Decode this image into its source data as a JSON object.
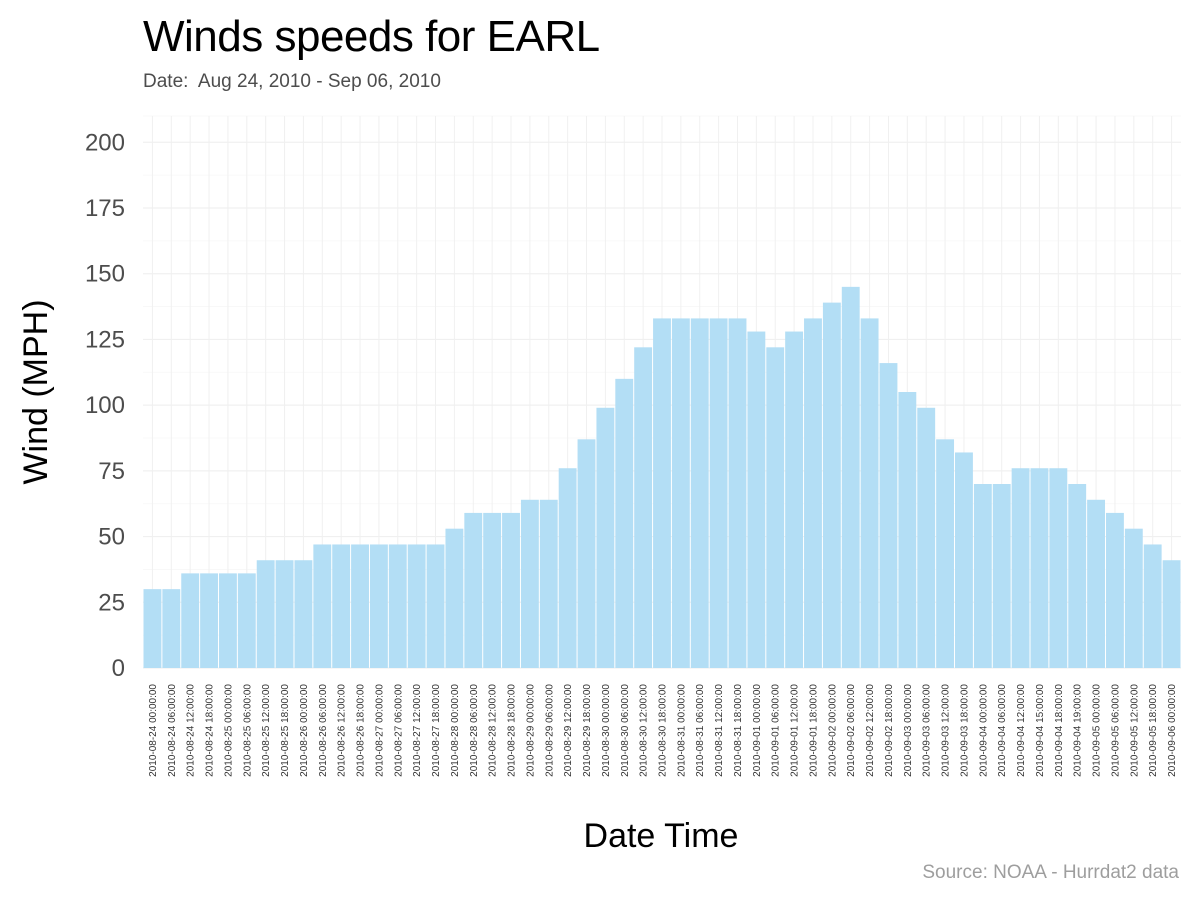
{
  "header": {
    "title": "Winds speeds for EARL",
    "subtitle": "Date:  Aug 24, 2010 - Sep 06, 2010"
  },
  "footer": {
    "source": "Source: NOAA - Hurrdat2 data"
  },
  "colors": {
    "bar_fill": "#b3def5",
    "grid": "#f0f0f0",
    "text_dark": "#4d4d4d"
  },
  "chart_data": {
    "type": "bar",
    "title": "Winds speeds for EARL",
    "xlabel": "Date Time",
    "ylabel": "Wind (MPH)",
    "ylim": [
      0,
      210
    ],
    "yticks": [
      0,
      25,
      50,
      75,
      100,
      125,
      150,
      175,
      200
    ],
    "grid": true,
    "legend": "none",
    "categories": [
      "2010-08-24 00:00:00",
      "2010-08-24 06:00:00",
      "2010-08-24 12:00:00",
      "2010-08-24 18:00:00",
      "2010-08-25 00:00:00",
      "2010-08-25 06:00:00",
      "2010-08-25 12:00:00",
      "2010-08-25 18:00:00",
      "2010-08-26 00:00:00",
      "2010-08-26 06:00:00",
      "2010-08-26 12:00:00",
      "2010-08-26 18:00:00",
      "2010-08-27 00:00:00",
      "2010-08-27 06:00:00",
      "2010-08-27 12:00:00",
      "2010-08-27 18:00:00",
      "2010-08-28 00:00:00",
      "2010-08-28 06:00:00",
      "2010-08-28 12:00:00",
      "2010-08-28 18:00:00",
      "2010-08-29 00:00:00",
      "2010-08-29 06:00:00",
      "2010-08-29 12:00:00",
      "2010-08-29 18:00:00",
      "2010-08-30 00:00:00",
      "2010-08-30 06:00:00",
      "2010-08-30 12:00:00",
      "2010-08-30 18:00:00",
      "2010-08-31 00:00:00",
      "2010-08-31 06:00:00",
      "2010-08-31 12:00:00",
      "2010-08-31 18:00:00",
      "2010-09-01 00:00:00",
      "2010-09-01 06:00:00",
      "2010-09-01 12:00:00",
      "2010-09-01 18:00:00",
      "2010-09-02 00:00:00",
      "2010-09-02 06:00:00",
      "2010-09-02 12:00:00",
      "2010-09-02 18:00:00",
      "2010-09-03 00:00:00",
      "2010-09-03 06:00:00",
      "2010-09-03 12:00:00",
      "2010-09-03 18:00:00",
      "2010-09-04 00:00:00",
      "2010-09-04 06:00:00",
      "2010-09-04 12:00:00",
      "2010-09-04 15:00:00",
      "2010-09-04 18:00:00",
      "2010-09-04 19:00:00",
      "2010-09-05 00:00:00",
      "2010-09-05 06:00:00",
      "2010-09-05 12:00:00",
      "2010-09-05 18:00:00",
      "2010-09-06 00:00:00"
    ],
    "values": [
      30,
      30,
      36,
      36,
      36,
      36,
      41,
      41,
      41,
      47,
      47,
      47,
      47,
      47,
      47,
      47,
      53,
      59,
      59,
      59,
      64,
      64,
      76,
      87,
      99,
      110,
      122,
      133,
      133,
      133,
      133,
      133,
      128,
      122,
      128,
      133,
      139,
      145,
      133,
      116,
      105,
      99,
      87,
      82,
      70,
      70,
      76,
      76,
      76,
      70,
      64,
      59,
      53,
      47,
      41
    ]
  }
}
